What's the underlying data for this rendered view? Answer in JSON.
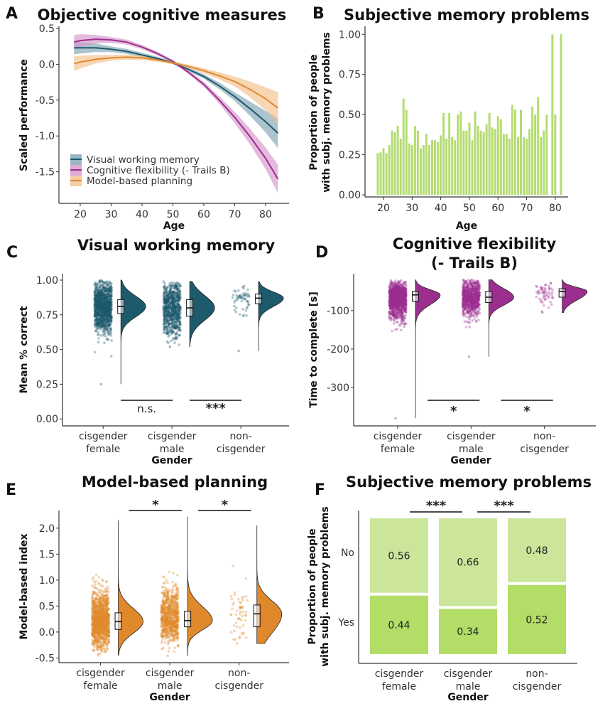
{
  "chart_data": [
    {
      "panel": "A",
      "type": "line",
      "title": "Objective cognitive measures",
      "xlabel": "Age",
      "ylabel": "Scaled performance",
      "xlim": [
        13.1,
        87.6
      ],
      "ylim": [
        -1.94,
        0.53
      ],
      "xticks": [
        20,
        30,
        40,
        50,
        60,
        70,
        80
      ],
      "yticks": [
        0.5,
        0.0,
        -0.5,
        -1.0,
        -1.5
      ],
      "ytick_labels": [
        "0.5",
        "0.0",
        "-0.5",
        "-1.0",
        "-1.5"
      ],
      "legend": "bottom-left",
      "x": [
        18,
        20,
        25,
        30,
        35,
        40,
        45,
        50,
        55,
        60,
        65,
        70,
        75,
        80,
        84
      ],
      "series": [
        {
          "name": "Visual working memory",
          "color": "#1d5a6c",
          "band_color": "#7fa5b3",
          "values": [
            0.23,
            0.23,
            0.23,
            0.21,
            0.18,
            0.13,
            0.08,
            0.02,
            -0.07,
            -0.17,
            -0.3,
            -0.45,
            -0.62,
            -0.8,
            -0.96
          ],
          "ci_halfwidth": [
            0.09,
            0.08,
            0.06,
            0.04,
            0.035,
            0.03,
            0.025,
            0.02,
            0.025,
            0.03,
            0.045,
            0.06,
            0.1,
            0.15,
            0.21
          ]
        },
        {
          "name": "Cognitive flexibility (- Trails B)",
          "color": "#9c2f8e",
          "band_color": "#d596cb",
          "values": [
            0.31,
            0.33,
            0.35,
            0.34,
            0.31,
            0.24,
            0.15,
            0.04,
            -0.11,
            -0.28,
            -0.5,
            -0.74,
            -1.01,
            -1.31,
            -1.6
          ],
          "ci_halfwidth": [
            0.1,
            0.09,
            0.06,
            0.04,
            0.035,
            0.03,
            0.025,
            0.02,
            0.025,
            0.035,
            0.05,
            0.08,
            0.11,
            0.15,
            0.2
          ]
        },
        {
          "name": "Model-based planning",
          "color": "#e0892c",
          "band_color": "#f2c08c",
          "values": [
            0.01,
            0.03,
            0.07,
            0.09,
            0.1,
            0.09,
            0.06,
            0.02,
            -0.03,
            -0.09,
            -0.16,
            -0.24,
            -0.35,
            -0.48,
            -0.61
          ],
          "ci_halfwidth": [
            0.1,
            0.09,
            0.06,
            0.04,
            0.035,
            0.03,
            0.025,
            0.02,
            0.025,
            0.035,
            0.05,
            0.07,
            0.11,
            0.16,
            0.22
          ]
        }
      ]
    },
    {
      "panel": "B",
      "type": "bar",
      "title": "Subjective memory problems",
      "xlabel": "Age",
      "ylabel": [
        "Proportion of people",
        "with subj. memory problems"
      ],
      "xlim": [
        13.55,
        84.5
      ],
      "ylim": [
        -0.013,
        1.05
      ],
      "xticks": [
        20,
        30,
        40,
        50,
        60,
        70,
        80
      ],
      "yticks": [
        0,
        0.25,
        0.5,
        0.75,
        1.0
      ],
      "ytick_labels": [
        "0.00",
        "0.25",
        "0.50",
        "0.75",
        "1.00"
      ],
      "color": "#b4dc72",
      "x": [
        18,
        19,
        20,
        21,
        22,
        23,
        24,
        25,
        26,
        27,
        28,
        29,
        30,
        31,
        32,
        33,
        34,
        35,
        36,
        37,
        38,
        39,
        40,
        41,
        42,
        43,
        44,
        45,
        46,
        47,
        48,
        49,
        50,
        51,
        52,
        53,
        54,
        55,
        56,
        57,
        58,
        59,
        60,
        61,
        62,
        63,
        64,
        65,
        66,
        67,
        68,
        69,
        70,
        71,
        72,
        73,
        74,
        75,
        76,
        77,
        79,
        80,
        82
      ],
      "values": [
        0.26,
        0.265,
        0.29,
        0.26,
        0.31,
        0.4,
        0.39,
        0.43,
        0.35,
        0.6,
        0.53,
        0.32,
        0.31,
        0.43,
        0.4,
        0.29,
        0.31,
        0.38,
        0.31,
        0.34,
        0.34,
        0.33,
        0.37,
        0.51,
        0.35,
        0.51,
        0.36,
        0.34,
        0.5,
        0.52,
        0.4,
        0.4,
        0.45,
        0.34,
        0.52,
        0.43,
        0.4,
        0.39,
        0.44,
        0.51,
        0.42,
        0.41,
        0.49,
        0.47,
        0.38,
        0.38,
        0.35,
        0.56,
        0.53,
        0.36,
        0.53,
        0.36,
        0.35,
        0.41,
        0.55,
        0.5,
        0.61,
        0.36,
        0.4,
        0.5,
        1.0,
        0.5,
        1.0
      ]
    },
    {
      "panel": "C",
      "type": "raincloud",
      "title": "Visual working memory",
      "xlabel": "Gender",
      "ylabel": "Mean % correct",
      "xlim": [
        0.41,
        3.7
      ],
      "ylim": [
        -0.05,
        1.046
      ],
      "yticks": [
        0,
        0.25,
        0.5,
        0.75,
        1.0
      ],
      "ytick_labels": [
        "0.00",
        "0.25",
        "0.50",
        "0.75",
        "1.00"
      ],
      "color": "#1d5a6c",
      "categories": [
        [
          "cisgender",
          "female"
        ],
        [
          "cisgender",
          "male"
        ],
        [
          "non-",
          "cisgender"
        ]
      ],
      "stats": [
        {
          "median": 0.81,
          "q1": 0.76,
          "q3": 0.86,
          "min": 0.25,
          "max": 1.0
        },
        {
          "median": 0.8,
          "q1": 0.74,
          "q3": 0.86,
          "min": 0.52,
          "max": 0.99
        },
        {
          "median": 0.87,
          "q1": 0.83,
          "q3": 0.9,
          "min": 0.49,
          "max": 0.99
        }
      ],
      "significance": [
        {
          "between": [
            1,
            2
          ],
          "label": "n.s."
        },
        {
          "between": [
            2,
            3
          ],
          "label": "***"
        }
      ]
    },
    {
      "panel": "D",
      "type": "raincloud",
      "title": [
        "Cognitive flexibility",
        "(- Trails B)"
      ],
      "xlabel": "Gender",
      "ylabel": "Time to complete [s]",
      "xlim": [
        0.4,
        3.7
      ],
      "ylim": [
        -400,
        -4
      ],
      "yticks": [
        -100,
        -200,
        -300
      ],
      "ytick_labels": [
        "-100",
        "-200",
        "-300"
      ],
      "color": "#9c2f8e",
      "categories": [
        [
          "cisgender",
          "female"
        ],
        [
          "cisgender",
          "male"
        ],
        [
          "non-",
          "cisgender"
        ]
      ],
      "stats": [
        {
          "median": -59,
          "q1": -76,
          "q3": -50,
          "min": -380,
          "max": -20
        },
        {
          "median": -65,
          "q1": -79,
          "q3": -50,
          "min": -220,
          "max": -20
        },
        {
          "median": -50,
          "q1": -65,
          "q3": -43,
          "min": -105,
          "max": -20
        }
      ],
      "significance": [
        {
          "between": [
            1,
            2
          ],
          "label": "*"
        },
        {
          "between": [
            2,
            3
          ],
          "label": "*"
        }
      ]
    },
    {
      "panel": "E",
      "type": "raincloud",
      "title": "Model-based planning",
      "xlabel": "Gender",
      "ylabel": "Model-based index",
      "xlim": [
        0.4,
        3.72
      ],
      "ylim": [
        -0.59,
        2.34
      ],
      "yticks": [
        -0.5,
        0,
        0.5,
        1.0,
        1.5,
        2.0
      ],
      "ytick_labels": [
        "-0.5",
        "0.0",
        "0.5",
        "1.0",
        "1.5",
        "2.0"
      ],
      "color": "#e0892c",
      "categories": [
        [
          "cisgender",
          "female"
        ],
        [
          "cisgender",
          "male"
        ],
        [
          "non-",
          "cisgender"
        ]
      ],
      "stats": [
        {
          "median": 0.2,
          "q1": 0.05,
          "q3": 0.37,
          "min": -0.45,
          "max": 2.15
        },
        {
          "median": 0.22,
          "q1": 0.1,
          "q3": 0.4,
          "min": -0.46,
          "max": 2.22
        },
        {
          "median": 0.35,
          "q1": 0.1,
          "q3": 0.52,
          "min": -0.22,
          "max": 2.05
        }
      ],
      "significance": [
        {
          "between": [
            1,
            2
          ],
          "label": "*"
        },
        {
          "between": [
            2,
            3
          ],
          "label": "*"
        }
      ]
    },
    {
      "panel": "F",
      "type": "stacked-bar",
      "title": "Subjective memory problems",
      "xlabel": "Gender",
      "ylabel": [
        "Proportion of people",
        "with subj. memory problems"
      ],
      "levels": [
        "No",
        "Yes"
      ],
      "level_colors": {
        "No": "#cbe69b",
        "Yes": "#b3dd66"
      },
      "categories": [
        [
          "cisgender",
          "female"
        ],
        [
          "cisgender",
          "male"
        ],
        [
          "non-",
          "cisgender"
        ]
      ],
      "values": {
        "No": [
          0.56,
          0.66,
          0.48
        ],
        "Yes": [
          0.44,
          0.34,
          0.52
        ]
      },
      "value_labels": {
        "No": [
          "0.56",
          "0.66",
          "0.48"
        ],
        "Yes": [
          "0.44",
          "0.34",
          "0.52"
        ]
      },
      "significance": [
        {
          "between": [
            1,
            2
          ],
          "label": "***"
        },
        {
          "between": [
            2,
            3
          ],
          "label": "***"
        }
      ]
    }
  ],
  "panel_letters": [
    "A",
    "B",
    "C",
    "D",
    "E",
    "F"
  ]
}
